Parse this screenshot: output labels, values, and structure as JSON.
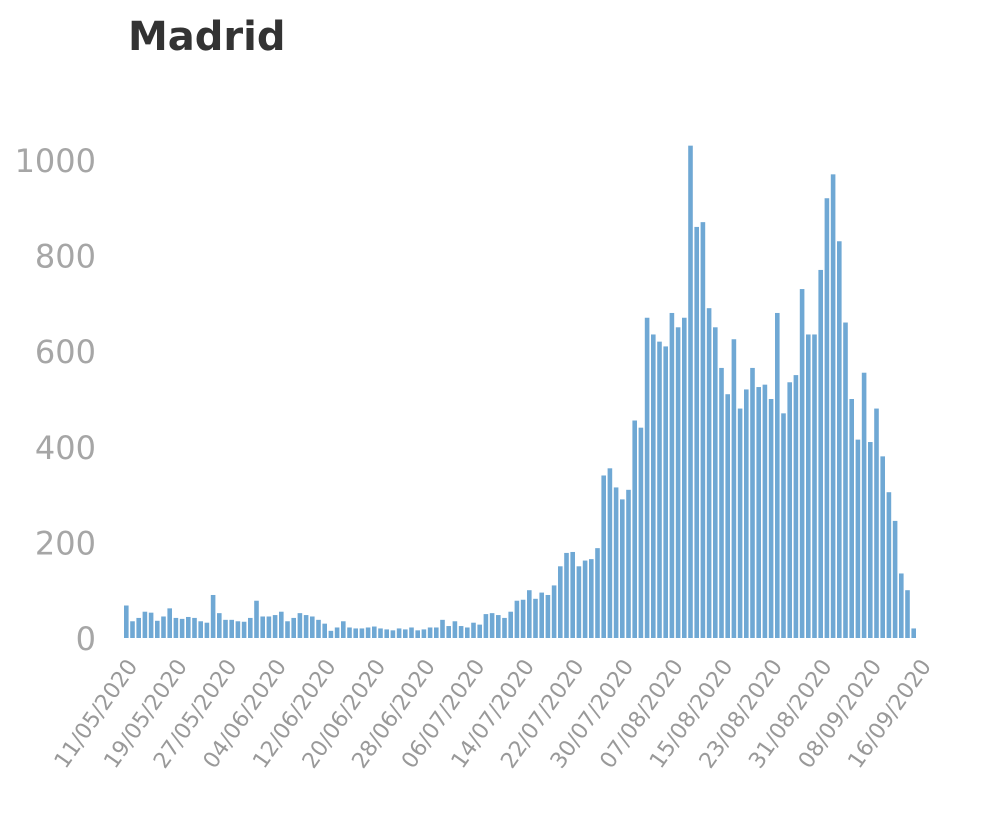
{
  "chart_data": {
    "type": "bar",
    "title": "Madrid",
    "xlabel": "",
    "ylabel": "",
    "ylim": [
      0,
      1040
    ],
    "yticks": [
      "0",
      "200",
      "400",
      "600",
      "800",
      "1000"
    ],
    "xtick_labels": [
      "11/05/2020",
      "19/05/2020",
      "27/05/2020",
      "04/06/2020",
      "12/06/2020",
      "20/06/2020",
      "28/06/2020",
      "06/07/2020",
      "14/07/2020",
      "22/07/2020",
      "30/07/2020",
      "07/08/2020",
      "15/08/2020",
      "23/08/2020",
      "31/08/2020",
      "08/09/2020",
      "16/09/2020"
    ],
    "start_date": "2020-05-11",
    "color": "#6fa8d4",
    "grid": false,
    "legend": "none",
    "values": [
      68,
      35,
      42,
      55,
      53,
      36,
      45,
      62,
      42,
      40,
      44,
      42,
      35,
      32,
      90,
      52,
      38,
      38,
      35,
      34,
      42,
      78,
      45,
      45,
      48,
      55,
      35,
      42,
      52,
      48,
      45,
      38,
      30,
      15,
      22,
      35,
      22,
      20,
      20,
      22,
      24,
      20,
      18,
      16,
      20,
      18,
      22,
      16,
      18,
      22,
      22,
      38,
      25,
      35,
      25,
      22,
      32,
      28,
      50,
      52,
      48,
      42,
      55,
      78,
      80,
      100,
      82,
      95,
      90,
      110,
      150,
      178,
      180,
      150,
      162,
      165,
      188,
      340,
      355,
      315,
      290,
      310,
      455,
      440,
      670,
      635,
      620,
      610,
      680,
      650,
      670,
      1030,
      860,
      870,
      690,
      650,
      565,
      510,
      625,
      480,
      520,
      565,
      525,
      530,
      500,
      680,
      470,
      535,
      550,
      730,
      635,
      635,
      770,
      920,
      970,
      830,
      660,
      500,
      415,
      555,
      410,
      480,
      380,
      305,
      245,
      135,
      100,
      20
    ]
  }
}
